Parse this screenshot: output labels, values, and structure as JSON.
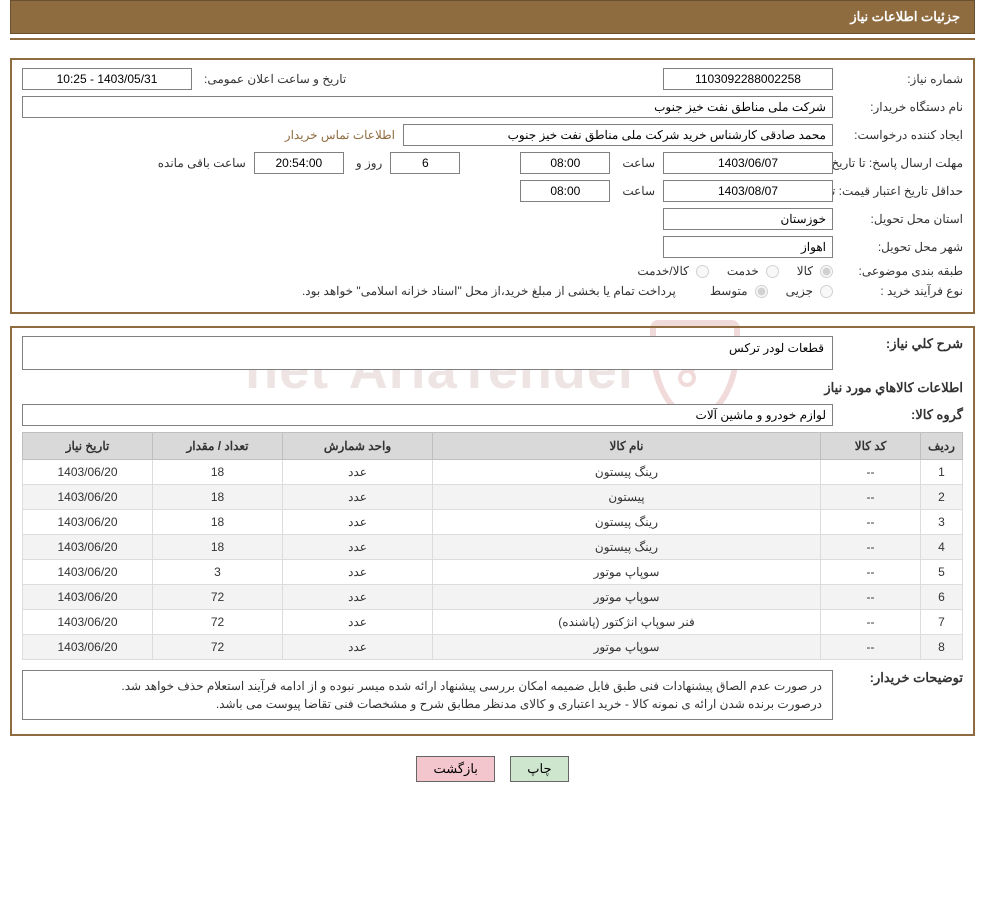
{
  "colors": {
    "accent": "#8f6c3f",
    "header_text": "#ffffff",
    "border_gray": "#808080",
    "th_bg": "#d9d9d9",
    "th_border": "#bfbfbf",
    "row_alt": "#f3f3f3",
    "btn_print_bg": "#cde6cd",
    "btn_back_bg": "#f3c6cd",
    "watermark": "#b58a8a",
    "shield": "#c25b5b"
  },
  "watermark": {
    "text_left": "AriaTender",
    "text_right": "net"
  },
  "header": {
    "title": "جزئیات اطلاعات نیاز"
  },
  "info": {
    "need_no_label": "شماره نیاز:",
    "need_no": "1103092288002258",
    "announce_label": "تاریخ و ساعت اعلان عمومی:",
    "announce_value": "1403/05/31 - 10:25",
    "buyer_org_label": "نام دستگاه خریدار:",
    "buyer_org": "شرکت ملی مناطق نفت خیز جنوب",
    "requester_label": "ایجاد کننده درخواست:",
    "requester": "محمد صادقی  کارشناس خرید  شرکت ملی مناطق نفت خیز جنوب",
    "contact_link": "اطلاعات تماس خریدار",
    "deadline_label": "مهلت ارسال پاسخ:",
    "date_prefix": "تا تاریخ:",
    "deadline_date": "1403/06/07",
    "time_label": "ساعت",
    "deadline_time": "08:00",
    "days_remaining": "6",
    "days_suffix": "روز و",
    "hours_remaining": "20:54:00",
    "hours_suffix": "ساعت باقی مانده",
    "price_valid_label": "حداقل تاریخ اعتبار قیمت:",
    "price_valid_date": "1403/08/07",
    "price_valid_time": "08:00",
    "province_label": "استان محل تحویل:",
    "province": "خوزستان",
    "city_label": "شهر محل تحویل:",
    "city": "اهواز",
    "class_label": "طبقه بندی موضوعی:",
    "class_opts": {
      "a": "کالا",
      "b": "خدمت",
      "c": "کالا/خدمت"
    },
    "proc_label": "نوع فرآیند خرید :",
    "proc_opts": {
      "a": "جزیی",
      "b": "متوسط"
    },
    "proc_note": "پرداخت تمام یا بخشی از مبلغ خرید،از محل \"اسناد خزانه اسلامی\" خواهد بود."
  },
  "need": {
    "desc_label": "شرح کلي نياز:",
    "desc": "قطعات لودر ترکس",
    "items_title": "اطلاعات کالاهاي مورد نياز",
    "group_label": "گروه کالا:",
    "group": "لوازم خودرو و ماشین آلات"
  },
  "table": {
    "headers": {
      "idx": "ردیف",
      "code": "کد کالا",
      "name": "نام کالا",
      "unit": "واحد شمارش",
      "qty": "تعداد / مقدار",
      "date": "تاريخ نياز"
    },
    "rows": [
      {
        "idx": "1",
        "code": "--",
        "name": "رینگ پیستون",
        "unit": "عدد",
        "qty": "18",
        "date": "1403/06/20"
      },
      {
        "idx": "2",
        "code": "--",
        "name": "پیستون",
        "unit": "عدد",
        "qty": "18",
        "date": "1403/06/20"
      },
      {
        "idx": "3",
        "code": "--",
        "name": "رینگ پیستون",
        "unit": "عدد",
        "qty": "18",
        "date": "1403/06/20"
      },
      {
        "idx": "4",
        "code": "--",
        "name": "رینگ پیستون",
        "unit": "عدد",
        "qty": "18",
        "date": "1403/06/20"
      },
      {
        "idx": "5",
        "code": "--",
        "name": "سوپاپ موتور",
        "unit": "عدد",
        "qty": "3",
        "date": "1403/06/20"
      },
      {
        "idx": "6",
        "code": "--",
        "name": "سوپاپ موتور",
        "unit": "عدد",
        "qty": "72",
        "date": "1403/06/20"
      },
      {
        "idx": "7",
        "code": "--",
        "name": "فنر سوپاپ انژکتور (پاشنده)",
        "unit": "عدد",
        "qty": "72",
        "date": "1403/06/20"
      },
      {
        "idx": "8",
        "code": "--",
        "name": "سوپاپ موتور",
        "unit": "عدد",
        "qty": "72",
        "date": "1403/06/20"
      }
    ]
  },
  "buyer_note": {
    "label": "توضیحات خریدار:",
    "line1": "در صورت عدم الصاق پیشنهادات فنی طبق فایل ضمیمه امکان بررسی پیشنهاد ارائه شده میسر نبوده و از ادامه فرآیند استعلام حذف خواهد شد.",
    "line2": "درصورت برنده شدن ارائه ی نمونه کالا - خرید اعتباری و کالای مدنظر مطابق شرح و مشخصات فنی تقاضا پیوست می باشد."
  },
  "buttons": {
    "print": "چاپ",
    "back": "بازگشت"
  }
}
